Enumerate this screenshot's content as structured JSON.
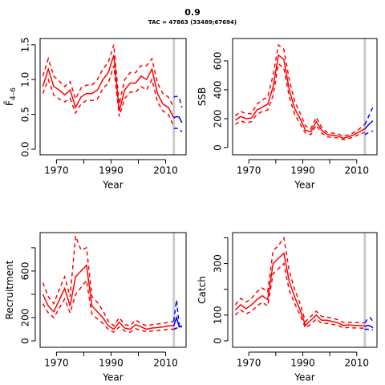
{
  "title": "0.9",
  "subtitle": "TAC = 47863 (33489;67694)",
  "chart_data": [
    {
      "type": "line",
      "ylabel": "F̄",
      "ylabel_subscript": "4–6",
      "xlabel": "Year",
      "xlim": [
        1964,
        2017.5
      ],
      "xticks": [
        1970,
        1990,
        2010
      ],
      "xticks_unlabeled": [
        1980,
        2000
      ],
      "ylim": [
        -0.08,
        1.59
      ],
      "yticks": [
        {
          "value": 0,
          "label": "0.0"
        },
        0.5,
        {
          "value": 1,
          "label": "1.0"
        },
        1.5
      ],
      "yticks_unlabeled": [],
      "vline": 2013,
      "vline_color": "#cccccc",
      "x": [
        1965,
        1967,
        1969,
        1971,
        1973,
        1975,
        1977,
        1979,
        1981,
        1983,
        1985,
        1987,
        1989,
        1991,
        1993,
        1995,
        1997,
        1999,
        2001,
        2003,
        2005,
        2007,
        2009,
        2011,
        2013
      ],
      "series": [
        {
          "color": "#ff0000",
          "dash": "solid",
          "values": [
            0.9,
            1.15,
            0.9,
            0.85,
            0.78,
            0.85,
            0.6,
            0.75,
            0.8,
            0.8,
            0.85,
            1.0,
            1.1,
            1.35,
            0.55,
            0.85,
            0.95,
            0.95,
            1.05,
            1.0,
            1.15,
            0.8,
            0.65,
            0.6,
            0.45
          ]
        },
        {
          "color": "#ff0000",
          "dash": "dashed",
          "values": [
            1.05,
            1.3,
            1.05,
            0.98,
            0.9,
            0.97,
            0.72,
            0.88,
            0.92,
            0.92,
            1.0,
            1.15,
            1.25,
            1.5,
            0.65,
            1.0,
            1.1,
            1.1,
            1.2,
            1.2,
            1.3,
            0.95,
            0.8,
            0.75,
            0.6
          ]
        },
        {
          "color": "#ff0000",
          "dash": "dashed",
          "values": [
            0.8,
            1.0,
            0.78,
            0.72,
            0.68,
            0.73,
            0.52,
            0.65,
            0.7,
            0.7,
            0.72,
            0.87,
            0.95,
            1.2,
            0.47,
            0.73,
            0.82,
            0.82,
            0.9,
            0.85,
            1.0,
            0.68,
            0.55,
            0.5,
            0.33
          ]
        }
      ],
      "projection": {
        "x": [
          2013,
          2014,
          2015,
          2016
        ],
        "series": [
          {
            "color": "#0000ff",
            "dash": "solid",
            "values": [
              0.45,
              0.47,
              0.46,
              0.38
            ]
          },
          {
            "color": "#0000ff",
            "dash": "dashed",
            "values": [
              0.75,
              0.76,
              0.74,
              0.6
            ]
          },
          {
            "color": "#0000ff",
            "dash": "dashed",
            "values": [
              0.3,
              0.3,
              0.29,
              0.25
            ]
          }
        ]
      }
    },
    {
      "type": "line",
      "ylabel": "SSB",
      "xlabel": "Year",
      "xlim": [
        1964,
        2017.5
      ],
      "xticks": [
        1970,
        1990,
        2010
      ],
      "xticks_unlabeled": [
        1980,
        2000
      ],
      "ylim": [
        -50,
        755
      ],
      "yticks": [
        0,
        200,
        400,
        600
      ],
      "yticks_unlabeled": [],
      "vline": 2013,
      "vline_color": "#cccccc",
      "x": [
        1965,
        1967,
        1969,
        1971,
        1973,
        1975,
        1977,
        1979,
        1981,
        1983,
        1985,
        1987,
        1989,
        1991,
        1993,
        1995,
        1997,
        1999,
        2001,
        2003,
        2005,
        2007,
        2009,
        2011,
        2013
      ],
      "series": [
        {
          "color": "#ff0000",
          "dash": "solid",
          "values": [
            190,
            215,
            200,
            205,
            260,
            280,
            300,
            420,
            640,
            610,
            400,
            270,
            200,
            120,
            110,
            180,
            120,
            90,
            85,
            80,
            65,
            75,
            90,
            110,
            130
          ]
        },
        {
          "color": "#ff0000",
          "dash": "dashed",
          "values": [
            220,
            250,
            235,
            235,
            300,
            330,
            350,
            500,
            710,
            680,
            470,
            320,
            240,
            150,
            130,
            210,
            140,
            105,
            100,
            95,
            78,
            88,
            105,
            130,
            160
          ]
        },
        {
          "color": "#ff0000",
          "dash": "dashed",
          "values": [
            160,
            185,
            170,
            180,
            230,
            250,
            260,
            360,
            580,
            550,
            350,
            230,
            165,
            100,
            90,
            155,
            100,
            75,
            70,
            67,
            55,
            63,
            75,
            92,
            105
          ]
        }
      ],
      "projection": {
        "x": [
          2013,
          2014,
          2015,
          2016
        ],
        "series": [
          {
            "color": "#0000ff",
            "dash": "solid",
            "values": [
              130,
              150,
              170,
              185
            ]
          },
          {
            "color": "#0000ff",
            "dash": "dashed",
            "values": [
              160,
              200,
              240,
              280
            ]
          },
          {
            "color": "#0000ff",
            "dash": "dashed",
            "values": [
              90,
              100,
              110,
              115
            ]
          }
        ]
      }
    },
    {
      "type": "line",
      "ylabel": "Recruitment",
      "xlabel": "Year",
      "xlim": [
        1964,
        2017.5
      ],
      "xticks": [
        1970,
        1990,
        2010
      ],
      "xticks_unlabeled": [
        1980,
        2000
      ],
      "ylim": [
        -55,
        930
      ],
      "yticks": [
        0,
        200,
        600
      ],
      "yticks_unlabeled": [
        400,
        800
      ],
      "vline": 2013,
      "vline_color": "#cccccc",
      "x": [
        1965,
        1967,
        1969,
        1971,
        1973,
        1975,
        1977,
        1979,
        1981,
        1983,
        1985,
        1987,
        1989,
        1991,
        1993,
        1995,
        1997,
        1999,
        2001,
        2003,
        2005,
        2007,
        2009,
        2011,
        2013
      ],
      "series": [
        {
          "color": "#ff0000",
          "dash": "solid",
          "values": [
            400,
            300,
            250,
            350,
            450,
            300,
            550,
            600,
            650,
            300,
            250,
            200,
            130,
            100,
            160,
            110,
            100,
            140,
            120,
            100,
            110,
            115,
            120,
            130,
            130
          ]
        },
        {
          "color": "#ff0000",
          "dash": "dashed",
          "values": [
            500,
            380,
            320,
            440,
            550,
            380,
            900,
            780,
            800,
            380,
            330,
            260,
            170,
            130,
            200,
            140,
            130,
            180,
            150,
            130,
            140,
            145,
            150,
            160,
            170
          ]
        },
        {
          "color": "#ff0000",
          "dash": "dashed",
          "values": [
            320,
            240,
            200,
            280,
            360,
            240,
            400,
            460,
            520,
            230,
            190,
            150,
            100,
            75,
            120,
            85,
            75,
            105,
            90,
            80,
            85,
            90,
            95,
            100,
            100
          ]
        }
      ],
      "projection": {
        "x": [
          2013,
          2014,
          2015,
          2016
        ],
        "series": [
          {
            "color": "#0000ff",
            "dash": "solid",
            "values": [
              130,
              200,
              120,
              130
            ]
          },
          {
            "color": "#0000ff",
            "dash": "dashed",
            "values": [
              170,
              350,
              130,
              130
            ]
          },
          {
            "color": "#0000ff",
            "dash": "dashed",
            "values": [
              100,
              110,
              110,
              125
            ]
          }
        ]
      }
    },
    {
      "type": "line",
      "ylabel": "Catch",
      "xlabel": "Year",
      "xlim": [
        1964,
        2017.5
      ],
      "xticks": [
        1970,
        1990,
        2010
      ],
      "xticks_unlabeled": [
        1980,
        2000
      ],
      "ylim": [
        -25,
        420
      ],
      "yticks": [
        0,
        100,
        300
      ],
      "yticks_unlabeled": [
        200,
        400
      ],
      "vline": 2013,
      "vline_color": "#cccccc",
      "x": [
        1965,
        1967,
        1969,
        1971,
        1973,
        1975,
        1977,
        1979,
        1981,
        1983,
        1985,
        1987,
        1989,
        1991,
        1993,
        1995,
        1997,
        1999,
        2001,
        2003,
        2005,
        2007,
        2009,
        2011,
        2013
      ],
      "series": [
        {
          "color": "#ff0000",
          "dash": "solid",
          "values": [
            120,
            140,
            125,
            140,
            160,
            175,
            160,
            300,
            320,
            340,
            230,
            170,
            120,
            60,
            80,
            100,
            80,
            80,
            75,
            70,
            60,
            62,
            60,
            60,
            58
          ]
        },
        {
          "color": "#ff0000",
          "dash": "dashed",
          "values": [
            140,
            165,
            150,
            165,
            190,
            205,
            190,
            350,
            370,
            400,
            270,
            200,
            145,
            75,
            95,
            115,
            95,
            92,
            88,
            82,
            72,
            72,
            72,
            70,
            70
          ]
        },
        {
          "color": "#ff0000",
          "dash": "dashed",
          "values": [
            100,
            120,
            105,
            115,
            135,
            150,
            135,
            260,
            280,
            300,
            195,
            145,
            100,
            50,
            65,
            85,
            68,
            68,
            64,
            60,
            50,
            52,
            50,
            50,
            48
          ]
        }
      ],
      "projection": {
        "x": [
          2013,
          2014,
          2015,
          2016
        ],
        "series": [
          {
            "color": "#0000ff",
            "dash": "solid",
            "values": [
              55,
              60,
              58,
              50
            ]
          },
          {
            "color": "#0000ff",
            "dash": "dashed",
            "values": [
              70,
              85,
              90,
              75
            ]
          },
          {
            "color": "#0000ff",
            "dash": "dashed",
            "values": [
              45,
              45,
              45,
              42
            ]
          }
        ]
      }
    }
  ]
}
